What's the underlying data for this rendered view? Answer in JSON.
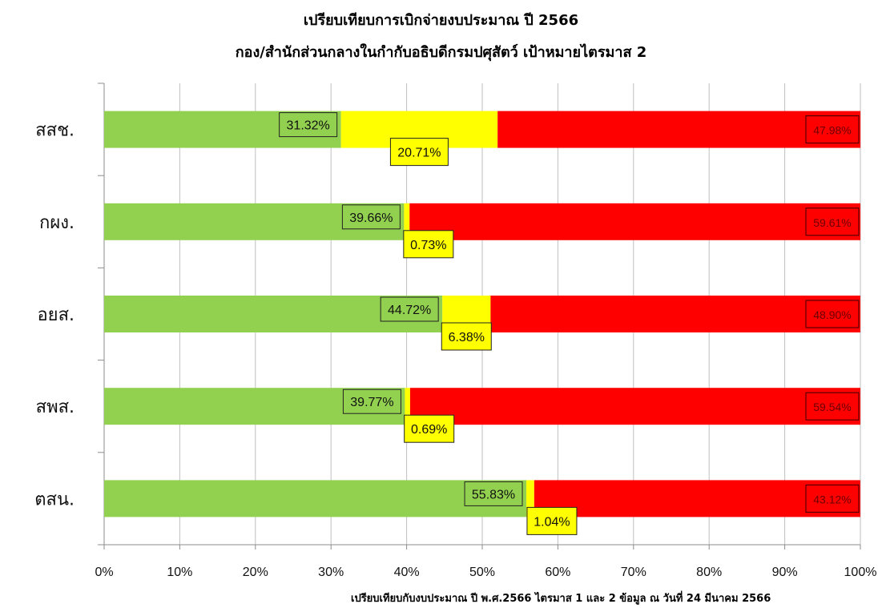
{
  "title": "เปรียบเทียบการเบิกจ่ายงบประมาณ ปี 2566",
  "subtitle": "กอง/สำนักส่วนกลางในกำกับอธิบดีกรมปศุสัตว์ เป้าหมายไตรมาส 2",
  "footnote": "เปรียบเทียบกับงบประมาณ ปี พ.ศ.2566 ไตรมาส 1 และ 2 ข้อมูล ณ วันที่ 24 มีนาคม 2566",
  "colors": {
    "green": "#92d050",
    "yellow": "#ffff00",
    "red": "#ff0000"
  },
  "chart_data": {
    "type": "bar",
    "orientation": "horizontal",
    "stacked": "percent",
    "categories": [
      "สสช.",
      "กผง.",
      "อยส.",
      "สพส.",
      "ตสน."
    ],
    "series": [
      {
        "color": "#92d050",
        "values": [
          31.32,
          39.66,
          44.72,
          39.77,
          55.83
        ],
        "labels": [
          "31.32%",
          "39.66%",
          "44.72%",
          "39.77%",
          "55.83%"
        ]
      },
      {
        "color": "#ffff00",
        "values": [
          20.71,
          0.73,
          6.38,
          0.69,
          1.04
        ],
        "labels": [
          "20.71%",
          "0.73%",
          "6.38%",
          "0.69%",
          "1.04%"
        ]
      },
      {
        "color": "#ff0000",
        "values": [
          47.98,
          59.61,
          48.9,
          59.54,
          43.12
        ],
        "labels": [
          "47.98%",
          "59.61%",
          "48.90%",
          "59.54%",
          "43.12%"
        ]
      }
    ],
    "xlim": [
      0,
      100
    ],
    "x_ticks": [
      "0%",
      "10%",
      "20%",
      "30%",
      "40%",
      "50%",
      "60%",
      "70%",
      "80%",
      "90%",
      "100%"
    ],
    "grid": true,
    "legend": "none"
  }
}
